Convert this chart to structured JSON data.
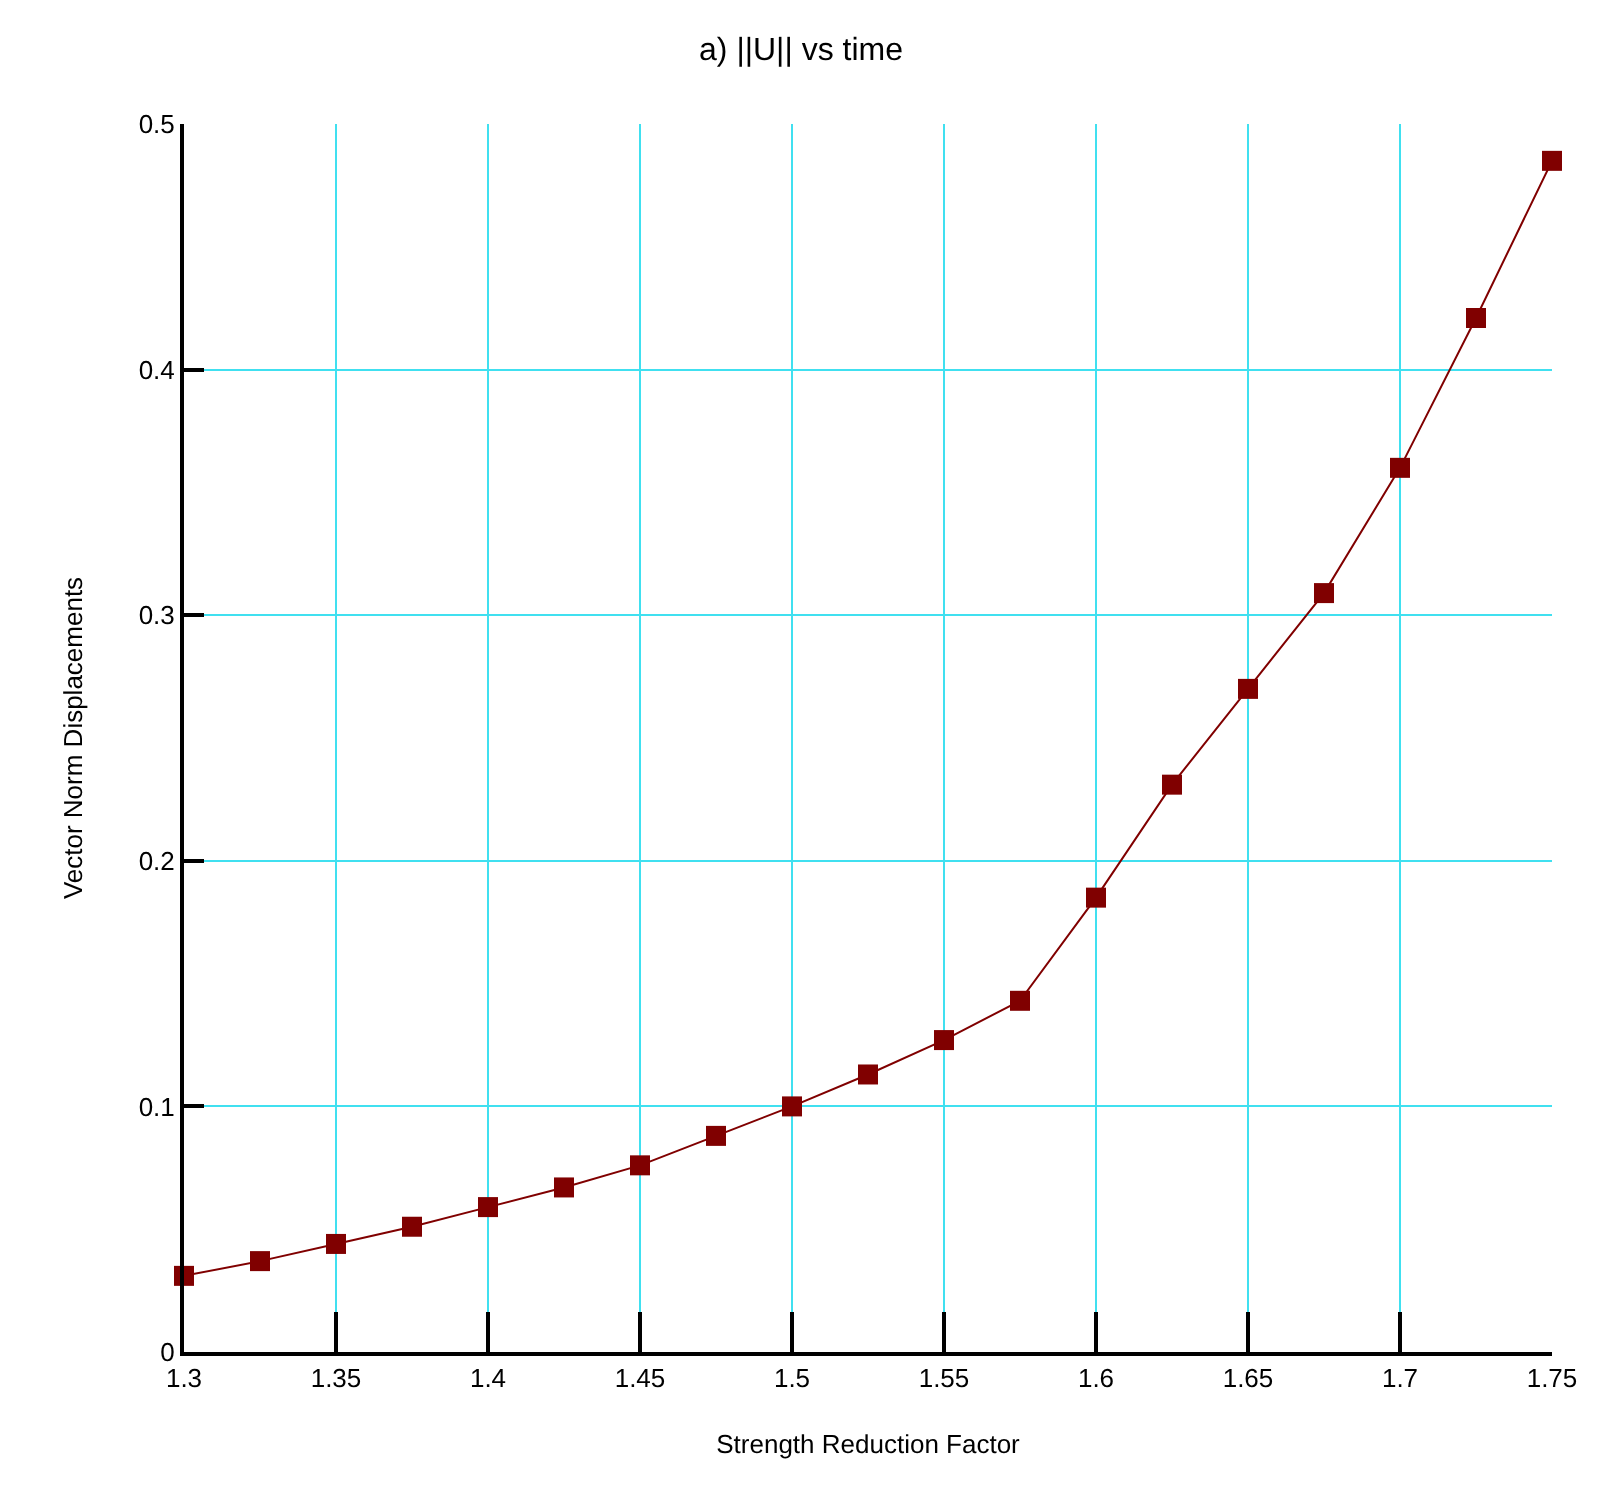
{
  "chart_data": {
    "type": "line",
    "title": "a) ||U|| vs time",
    "xlabel": "Strength Reduction Factor",
    "ylabel": "Vector Norm Displacements",
    "x": [
      1.3,
      1.325,
      1.35,
      1.375,
      1.4,
      1.425,
      1.45,
      1.475,
      1.5,
      1.525,
      1.55,
      1.575,
      1.6,
      1.625,
      1.65,
      1.675,
      1.7,
      1.725,
      1.75
    ],
    "series": [
      {
        "color": "#800000",
        "values": [
          0.031,
          0.037,
          0.044,
          0.051,
          0.059,
          0.067,
          0.076,
          0.088,
          0.1,
          0.113,
          0.127,
          0.143,
          0.185,
          0.231,
          0.27,
          0.309,
          0.36,
          0.421,
          0.485
        ]
      }
    ],
    "xlim": [
      1.3,
      1.75
    ],
    "xticks": [
      1.3,
      1.35,
      1.4,
      1.45,
      1.5,
      1.55,
      1.6,
      1.65,
      1.7,
      1.75
    ],
    "ylim": [
      0,
      0.5
    ],
    "yticks": [
      0,
      0.1,
      0.2,
      0.3,
      0.4,
      0.5
    ],
    "grid": true,
    "marker": "square",
    "line_style": "solid"
  }
}
